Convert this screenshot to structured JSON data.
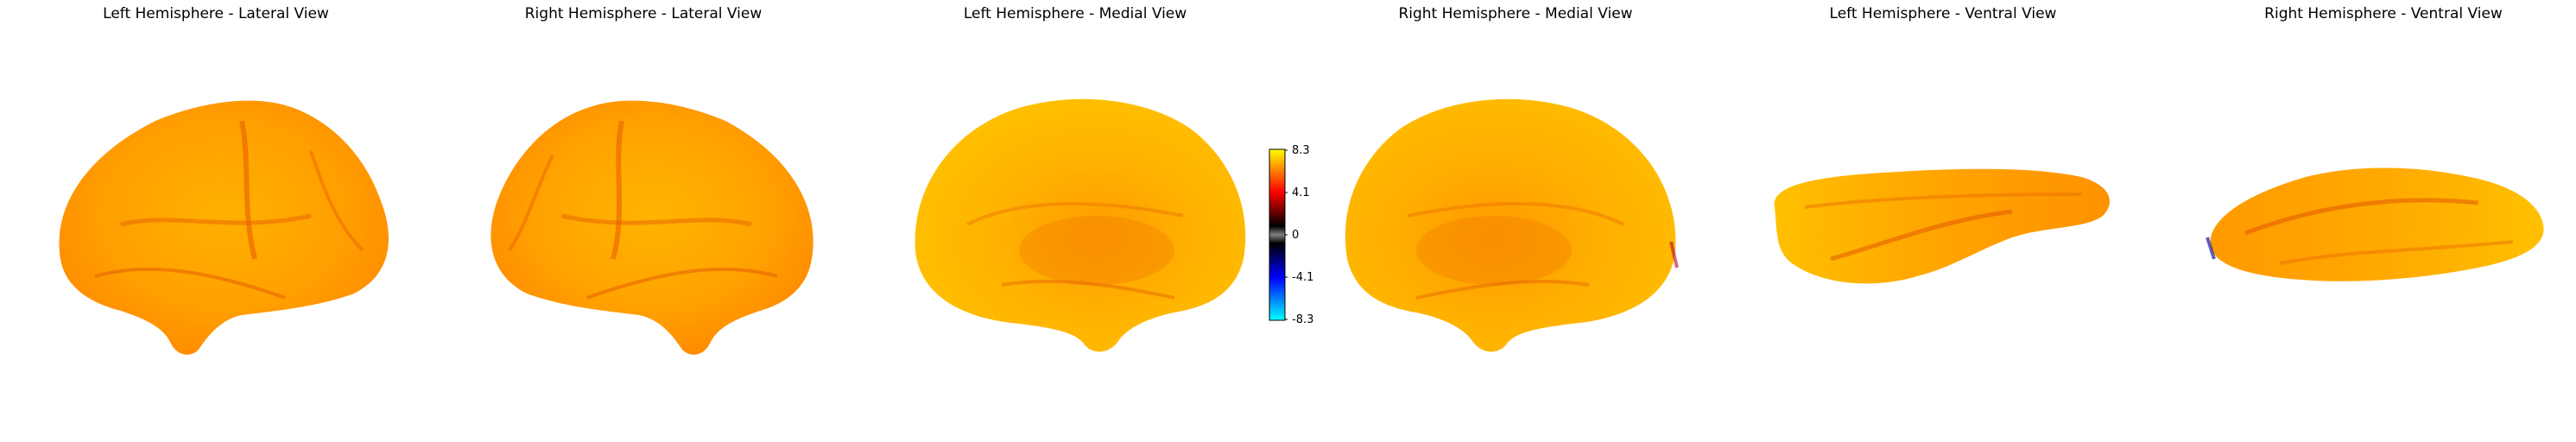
{
  "panels": [
    {
      "title": "Left Hemisphere - Lateral View"
    },
    {
      "title": "Right Hemisphere - Lateral View"
    },
    {
      "title": "Left Hemisphere - Medial View"
    },
    {
      "title": "Right Hemisphere - Medial View"
    },
    {
      "title": "Left Hemisphere - Ventral View"
    },
    {
      "title": "Right Hemisphere - Ventral View"
    }
  ],
  "colorbar": {
    "ticks": [
      "8.3",
      "4.1",
      "0",
      "-4.1",
      "-8.3"
    ],
    "colormap": "cold_hot",
    "colors": [
      "#00ffff",
      "#0000ff",
      "#000000",
      "#ff0000",
      "#ffff00"
    ]
  }
}
